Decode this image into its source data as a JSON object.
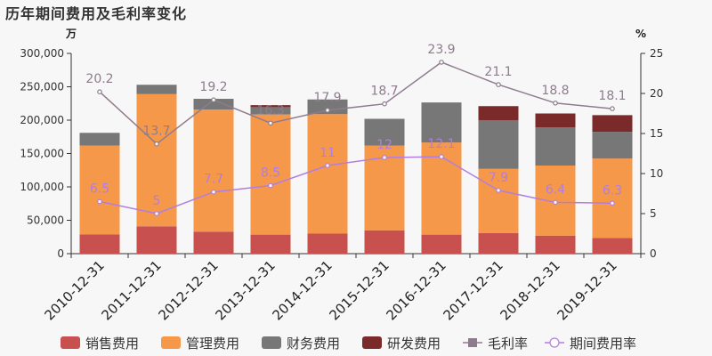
{
  "title": "历年期间费用及毛利率变化",
  "chart_data": {
    "type": "bar",
    "stacked": true,
    "title": "历年期间费用及毛利率变化",
    "y_left_unit": "万",
    "y_right_unit": "%",
    "ylim": [
      0,
      300000
    ],
    "y_ticks": [
      "0",
      "50,000",
      "100,000",
      "150,000",
      "200,000",
      "250,000",
      "300,000"
    ],
    "y_tick_values": [
      0,
      50000,
      100000,
      150000,
      200000,
      250000,
      300000
    ],
    "y2lim": [
      0,
      25
    ],
    "y2_ticks": [
      "0",
      "5",
      "10",
      "15",
      "20",
      "25"
    ],
    "y2_tick_values": [
      0,
      5,
      10,
      15,
      20,
      25
    ],
    "grid": false,
    "legend_position": "bottom",
    "categories": [
      "2010-12-31",
      "2011-12-31",
      "2012-12-31",
      "2013-12-31",
      "2014-12-31",
      "2015-12-31",
      "2016-12-31",
      "2017-12-31",
      "2018-12-31",
      "2019-12-31"
    ],
    "series": [
      {
        "name": "销售费用",
        "kind": "bar",
        "color": "#c8504e",
        "values": [
          29000,
          41000,
          33000,
          28500,
          30000,
          35000,
          28500,
          31000,
          27000,
          23500
        ]
      },
      {
        "name": "管理费用",
        "kind": "bar",
        "color": "#f6984a",
        "values": [
          133000,
          198000,
          183000,
          180000,
          179000,
          127000,
          138000,
          96000,
          105000,
          119000
        ]
      },
      {
        "name": "财务费用",
        "kind": "bar",
        "color": "#777777",
        "values": [
          19000,
          14000,
          16000,
          11000,
          22000,
          40000,
          60000,
          73000,
          57000,
          40000
        ]
      },
      {
        "name": "研发费用",
        "kind": "bar",
        "color": "#7b2a2a",
        "values": [
          0,
          0,
          0,
          3000,
          0,
          0,
          0,
          21000,
          21000,
          25000
        ]
      },
      {
        "name": "毛利率",
        "kind": "line",
        "axis": "right",
        "color": "#8e7c8e",
        "values": [
          20.2,
          13.7,
          19.2,
          16.3,
          17.9,
          18.7,
          23.9,
          21.1,
          18.8,
          18.1
        ],
        "labels": [
          "20.2",
          "13.7",
          "19.2",
          "16.3",
          "17.9",
          "18.7",
          "23.9",
          "21.1",
          "18.8",
          "18.1"
        ]
      },
      {
        "name": "期间费用率",
        "kind": "line",
        "axis": "right",
        "color": "#b07ee0",
        "values": [
          6.5,
          5,
          7.7,
          8.5,
          11,
          12,
          12.1,
          7.9,
          6.4,
          6.3
        ],
        "labels": [
          "6.5",
          "5",
          "7.7",
          "8.5",
          "11",
          "12",
          "12.1",
          "7.9",
          "6.4",
          "6.3"
        ]
      }
    ]
  }
}
